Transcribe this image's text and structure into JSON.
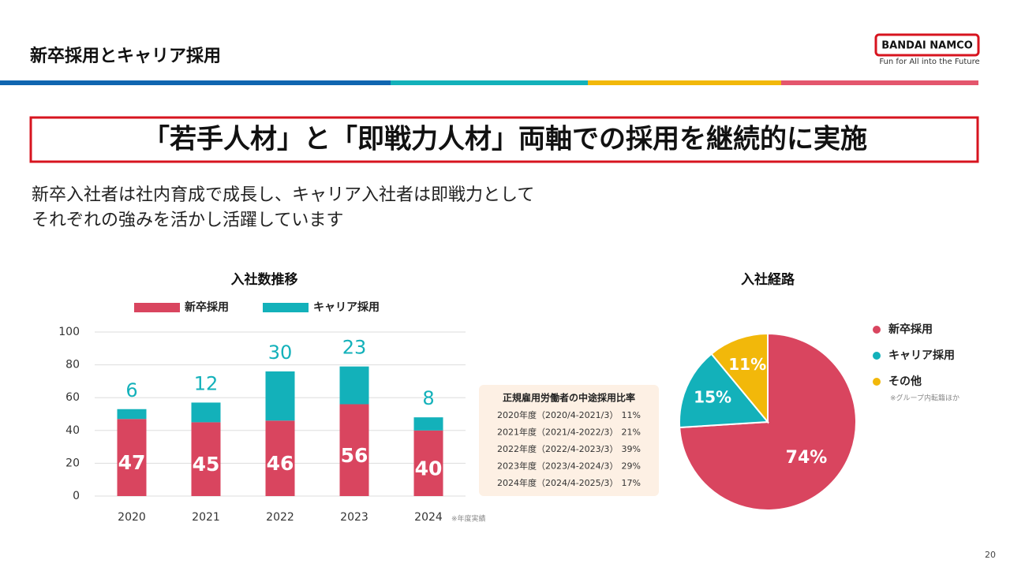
{
  "header": {
    "title": "新卒採用とキャリア採用",
    "logo": "BANDAI NAMCO",
    "tagline": "Fun for All into the Future"
  },
  "headline": "「若手人材」と「即戦力人材」両軸での採用を継続的に実施",
  "description": [
    "新卒入社者は社内育成で成長し、キャリア入社者は即戦力として",
    "それぞれの強みを活かし活躍しています"
  ],
  "chart_data": [
    {
      "type": "bar",
      "stacked": true,
      "title": "入社数推移",
      "categories": [
        "2020",
        "2021",
        "2022",
        "2023",
        "2024"
      ],
      "series": [
        {
          "name": "新卒採用",
          "color": "#d9455f",
          "values": [
            47,
            45,
            46,
            56,
            40
          ]
        },
        {
          "name": "キャリア採用",
          "color": "#13b1ba",
          "values": [
            6,
            12,
            30,
            23,
            8
          ]
        }
      ],
      "ylim": [
        0,
        100
      ],
      "yticks": [
        0,
        20,
        40,
        60,
        80,
        100
      ],
      "grid": true,
      "note": "※年度実績"
    },
    {
      "type": "pie",
      "title": "入社経路",
      "categories": [
        "新卒採用",
        "キャリア採用",
        "その他"
      ],
      "values": [
        74,
        15,
        11
      ],
      "value_labels": [
        "74%",
        "15%",
        "11%"
      ],
      "colors": [
        "#d9455f",
        "#13b1ba",
        "#f2b80a"
      ],
      "note": "※グループ内転籍ほか"
    }
  ],
  "ratio_table": {
    "title": "正規雇用労働者の中途採用比率",
    "rows": [
      [
        "2020年度（2020/4-2021/3）",
        "11%"
      ],
      [
        "2021年度（2021/4-2022/3）",
        "21%"
      ],
      [
        "2022年度（2022/4-2023/3）",
        "39%"
      ],
      [
        "2023年度（2023/4-2024/3）",
        "29%"
      ],
      [
        "2024年度（2024/4-2025/3）",
        "17%"
      ]
    ]
  },
  "page_number": "20"
}
